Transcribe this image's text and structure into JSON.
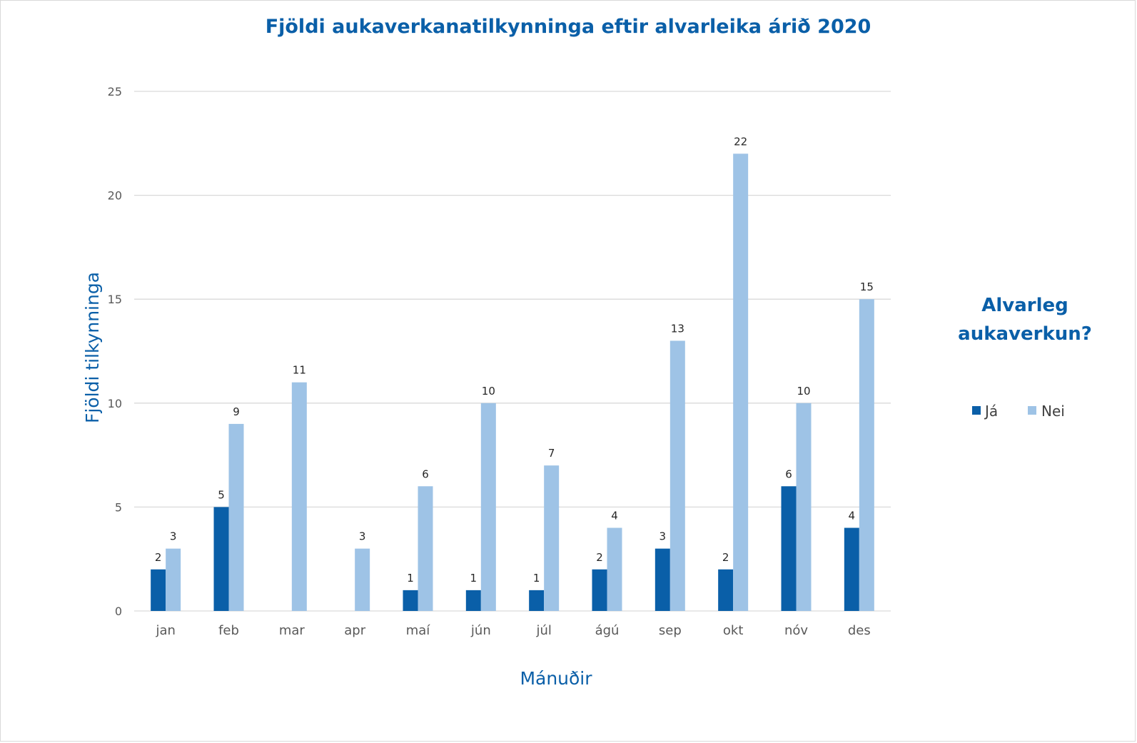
{
  "chart_data": {
    "type": "bar",
    "title": "Fjöldi aukaverkanatilkynninga eftir alvarleika árið 2020",
    "xlabel": "Mánuðir",
    "ylabel": "Fjöldi tilkynninga",
    "ylim": [
      0,
      25
    ],
    "yticks": [
      0,
      5,
      10,
      15,
      20,
      25
    ],
    "grid": true,
    "legend_title": "Alvarleg aukaverkun?",
    "legend_position": "right",
    "categories": [
      "jan",
      "feb",
      "mar",
      "apr",
      "maí",
      "jún",
      "júl",
      "ágú",
      "sep",
      "okt",
      "nóv",
      "des"
    ],
    "series": [
      {
        "name": "Já",
        "color": "#0a5fa8",
        "values": [
          2,
          5,
          null,
          null,
          1,
          1,
          1,
          2,
          3,
          2,
          6,
          4
        ]
      },
      {
        "name": "Nei",
        "color": "#9ec3e6",
        "values": [
          3,
          9,
          11,
          3,
          6,
          10,
          7,
          4,
          13,
          22,
          10,
          15
        ]
      }
    ],
    "colors": {
      "title": "#0a5fa8",
      "axis_text": "#595959",
      "grid": "#d9d9d9",
      "label": "#262626"
    }
  }
}
